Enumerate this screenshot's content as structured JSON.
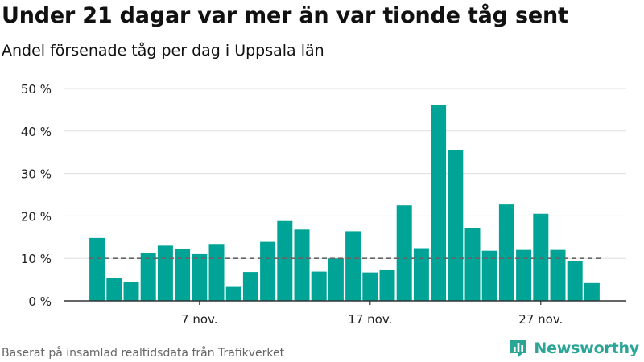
{
  "header": {
    "title": "Under 21 dagar var mer än var tionde tåg sent",
    "subtitle": "Andel försenade tåg per dag i Uppsala län"
  },
  "footer": {
    "source": "Baserat på insamlad realtidsdata från Trafikverket",
    "brand": "Newsworthy"
  },
  "icons": {
    "brand_logo": "newsworthy-bar-chart-logo-icon"
  },
  "colors": {
    "bar": "#00a496",
    "reference_line": "#666666",
    "grid": "#dddddd",
    "axis": "#333333",
    "brand": "#2aa596"
  },
  "chart_data": {
    "type": "bar",
    "categories": [
      "1 nov.",
      "2 nov.",
      "3 nov.",
      "4 nov.",
      "5 nov.",
      "6 nov.",
      "7 nov.",
      "8 nov.",
      "9 nov.",
      "10 nov.",
      "11 nov.",
      "12 nov.",
      "13 nov.",
      "14 nov.",
      "15 nov.",
      "16 nov.",
      "17 nov.",
      "18 nov.",
      "19 nov.",
      "20 nov.",
      "21 nov.",
      "22 nov.",
      "23 nov.",
      "24 nov.",
      "25 nov.",
      "26 nov.",
      "27 nov.",
      "28 nov.",
      "29 nov.",
      "30 nov."
    ],
    "values": [
      14.8,
      5.3,
      4.4,
      11.2,
      13.0,
      12.2,
      11.0,
      13.4,
      3.3,
      6.8,
      13.9,
      18.8,
      16.8,
      6.9,
      10.0,
      16.4,
      6.7,
      7.2,
      22.5,
      12.4,
      46.2,
      35.6,
      17.2,
      11.8,
      22.7,
      12.0,
      20.5,
      12.0,
      9.4,
      4.2
    ],
    "ylim": [
      0,
      50
    ],
    "yticks": [
      0,
      10,
      20,
      30,
      40,
      50
    ],
    "ytick_labels": [
      "0 %",
      "10 %",
      "20 %",
      "30 %",
      "40 %",
      "50 %"
    ],
    "xtick_labels": [
      {
        "category": "7 nov.",
        "label": "7 nov."
      },
      {
        "category": "17 nov.",
        "label": "17 nov."
      },
      {
        "category": "27 nov.",
        "label": "27 nov."
      }
    ],
    "reference_line": 10,
    "grid": true,
    "xlabel": "",
    "ylabel": ""
  }
}
